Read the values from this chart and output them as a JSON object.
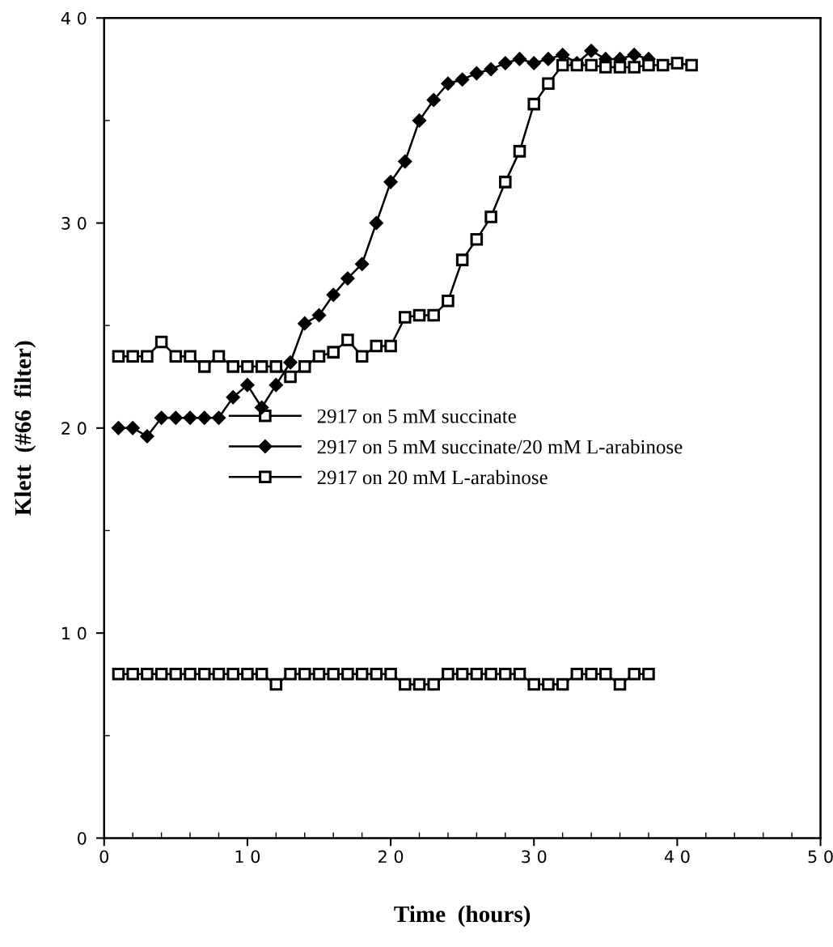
{
  "chart_data": {
    "type": "line",
    "xlabel": "Time  (hours)",
    "ylabel": "Klett  (#66  filter)",
    "x": [
      1,
      2,
      3,
      4,
      5,
      6,
      7,
      8,
      9,
      10,
      11,
      12,
      13,
      14,
      15,
      16,
      17,
      18,
      19,
      20,
      21,
      22,
      23,
      24,
      25,
      26,
      27,
      28,
      29,
      30,
      31,
      32,
      33,
      34,
      35,
      36,
      37,
      38,
      39,
      40,
      41
    ],
    "series": [
      {
        "name": "2917 on 5 mM succinate",
        "color": "#000000",
        "marker": "square",
        "values": [
          23.5,
          23.5,
          23.5,
          24.2,
          23.5,
          23.5,
          23.0,
          23.5,
          23.0,
          23.0,
          23.0,
          23.0,
          22.5,
          23.0,
          23.5,
          23.7,
          24.3,
          23.5,
          24.0,
          24.0,
          25.4,
          25.5,
          25.5,
          26.2,
          28.2,
          29.2,
          30.3,
          32.0,
          33.5,
          35.8,
          36.8,
          37.7,
          37.7,
          37.7,
          37.6,
          37.6,
          37.6,
          37.7,
          37.7,
          37.8,
          37.7
        ]
      },
      {
        "name": "2917 on 5 mM succinate/20 mM L-arabinose",
        "color": "#000000",
        "marker": "diamond",
        "x": [
          1,
          2,
          3,
          4,
          5,
          6,
          7,
          8,
          9,
          10,
          11,
          12,
          13,
          14,
          15,
          16,
          17,
          18,
          19,
          20,
          21,
          22,
          23,
          24,
          25,
          26,
          27,
          28,
          29,
          30,
          31,
          32,
          33,
          34,
          35,
          36,
          37,
          38
        ],
        "values": [
          20.0,
          20.0,
          19.6,
          20.5,
          20.5,
          20.5,
          20.5,
          20.5,
          21.5,
          22.1,
          21.0,
          22.1,
          23.2,
          25.1,
          25.5,
          26.5,
          27.3,
          28.0,
          30.0,
          32.0,
          33.0,
          35.0,
          36.0,
          36.8,
          37.0,
          37.3,
          37.5,
          37.8,
          38.0,
          37.8,
          38.0,
          38.2,
          37.8,
          38.4,
          38.0,
          38.0,
          38.2,
          38.0
        ]
      },
      {
        "name": "2917 on 20 mM L-arabinose",
        "color": "#000000",
        "marker": "square",
        "x": [
          1,
          2,
          3,
          4,
          5,
          6,
          7,
          8,
          9,
          10,
          11,
          12,
          13,
          14,
          15,
          16,
          17,
          18,
          19,
          20,
          21,
          22,
          23,
          24,
          25,
          26,
          27,
          28,
          29,
          30,
          31,
          32,
          33,
          34,
          35,
          36,
          37,
          38
        ],
        "values": [
          8,
          8,
          8,
          8,
          8,
          8,
          8,
          8,
          8,
          8,
          8,
          7.5,
          8,
          8,
          8,
          8,
          8,
          8,
          8,
          8,
          7.5,
          7.5,
          7.5,
          8,
          8,
          8,
          8,
          8,
          8,
          7.5,
          7.5,
          7.5,
          8,
          8,
          8,
          7.5,
          8,
          8
        ]
      }
    ],
    "xlim": [
      0,
      50
    ],
    "ylim": [
      0,
      40
    ],
    "xticks": [
      0,
      10,
      20,
      30,
      40,
      50
    ],
    "yticks": [
      0,
      10,
      20,
      30,
      40
    ],
    "grid": false,
    "legend": "center left",
    "line_style": "solid"
  }
}
